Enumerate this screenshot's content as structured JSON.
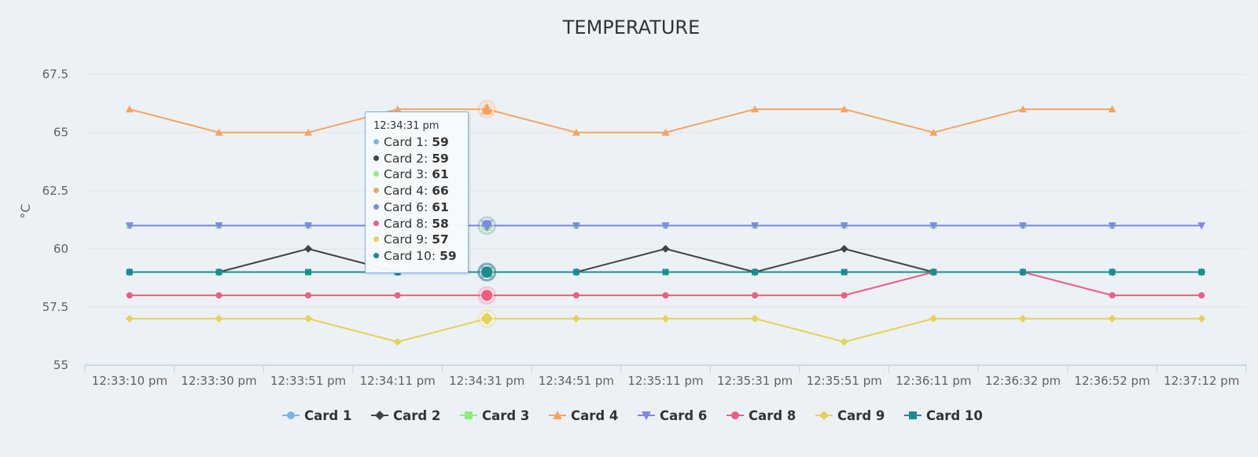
{
  "chart_data": {
    "type": "line",
    "title": "TEMPERATURE",
    "ylabel": "°C",
    "xlabel": "",
    "ylim": [
      55,
      68.5
    ],
    "yticks": [
      55,
      57.5,
      60,
      62.5,
      65,
      67.5
    ],
    "ytick_labels": [
      "55",
      "57.5",
      "60",
      "62.5",
      "65",
      "67.5"
    ],
    "categories": [
      "12:33:10 pm",
      "12:33:30 pm",
      "12:33:51 pm",
      "12:34:11 pm",
      "12:34:31 pm",
      "12:34:51 pm",
      "12:35:11 pm",
      "12:35:31 pm",
      "12:35:51 pm",
      "12:36:11 pm",
      "12:36:32 pm",
      "12:36:52 pm",
      "12:37:12 pm"
    ],
    "grid": true,
    "legend_position": "bottom",
    "series": [
      {
        "name": "Card 1",
        "color": "#7cb5ec",
        "marker": "circle",
        "values": [
          null,
          null,
          null,
          null,
          59,
          null,
          null,
          null,
          null,
          null,
          null,
          null,
          null
        ]
      },
      {
        "name": "Card 2",
        "color": "#434348",
        "marker": "diamond",
        "values": [
          59,
          59,
          60,
          59,
          59,
          59,
          60,
          59,
          60,
          59,
          59,
          59,
          59
        ]
      },
      {
        "name": "Card 3",
        "color": "#90ed7d",
        "marker": "square",
        "values": [
          61,
          61,
          61,
          61,
          61,
          61,
          61,
          61,
          61,
          61,
          61,
          61,
          null
        ]
      },
      {
        "name": "Card 4",
        "color": "#f7a35c",
        "marker": "triangle",
        "values": [
          66,
          65,
          65,
          66,
          66,
          65,
          65,
          66,
          66,
          65,
          66,
          66,
          null
        ]
      },
      {
        "name": "Card 6",
        "color": "#8085e9",
        "marker": "triangle-down",
        "values": [
          61,
          61,
          61,
          61,
          61,
          61,
          61,
          61,
          61,
          61,
          61,
          61,
          61
        ]
      },
      {
        "name": "Card 8",
        "color": "#f15c80",
        "marker": "circle",
        "values": [
          58,
          58,
          58,
          58,
          58,
          58,
          58,
          58,
          58,
          59,
          59,
          58,
          58
        ]
      },
      {
        "name": "Card 9",
        "color": "#e4d354",
        "marker": "diamond",
        "values": [
          57,
          57,
          57,
          56,
          57,
          57,
          57,
          57,
          56,
          57,
          57,
          57,
          57
        ]
      },
      {
        "name": "Card 10",
        "color": "#1a8e8e",
        "marker": "square",
        "values": [
          59,
          59,
          59,
          59,
          59,
          59,
          59,
          59,
          59,
          59,
          59,
          59,
          59
        ]
      }
    ],
    "tooltip": {
      "header": "12:34:31 pm",
      "rows": [
        {
          "label": "Card 1: ",
          "value": "59",
          "color": "#7cb5ec"
        },
        {
          "label": "Card 2: ",
          "value": "59",
          "color": "#434348"
        },
        {
          "label": "Card 3: ",
          "value": "61",
          "color": "#90ed7d"
        },
        {
          "label": "Card 4: ",
          "value": "66",
          "color": "#f7a35c"
        },
        {
          "label": "Card 6: ",
          "value": "61",
          "color": "#8085e9"
        },
        {
          "label": "Card 8: ",
          "value": "58",
          "color": "#f15c80"
        },
        {
          "label": "Card 9: ",
          "value": "57",
          "color": "#e4d354"
        },
        {
          "label": "Card 10: ",
          "value": "59",
          "color": "#1a8e8e"
        }
      ]
    },
    "hover_index": 4
  }
}
